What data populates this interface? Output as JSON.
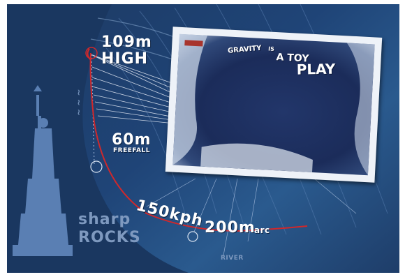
{
  "labels": {
    "height_value": "109m",
    "height_word": "HIGH",
    "freefall_value": "60m",
    "freefall_word": "FREEFALL",
    "speed": "150kph",
    "arc_value": "200m",
    "arc_word": "arc",
    "rocks_line1": "sharp",
    "rocks_line2": "ROCKS",
    "river": "RIVER"
  },
  "photo": {
    "line1": "GRAVITY",
    "line2": "IS",
    "line3": "A TOY",
    "line4": "PLAY"
  },
  "colors": {
    "background": "#1f4477",
    "trajectory": "#d0282b",
    "label": "#ffffff",
    "statue": "#5a7fb3"
  }
}
